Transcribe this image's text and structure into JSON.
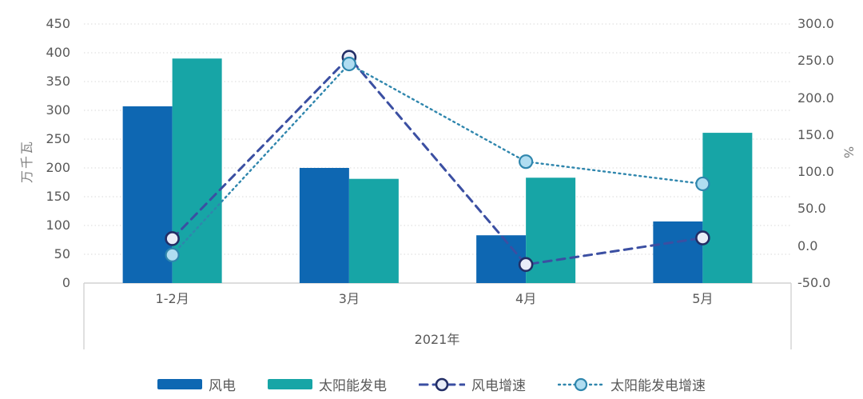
{
  "chart_data": {
    "type": "combo-bar-line",
    "categories": [
      "1-2月",
      "3月",
      "4月",
      "5月"
    ],
    "x_axis_group_label": "2021年",
    "left_axis": {
      "title": "万千瓦",
      "min": 0,
      "max": 450,
      "step": 50,
      "tick_labels": [
        "450",
        "400",
        "350",
        "300",
        "250",
        "200",
        "150",
        "100",
        "50",
        "0"
      ]
    },
    "right_axis": {
      "title": "%",
      "min": -50,
      "max": 300,
      "step": 50,
      "tick_labels": [
        "300.0",
        "250.0",
        "200.0",
        "150.0",
        "100.0",
        "50.0",
        "0.0",
        "-50.0"
      ]
    },
    "series": [
      {
        "name": "风电",
        "type": "bar",
        "axis": "left",
        "color": "#0e67b2",
        "values": [
          307,
          200,
          83,
          107
        ]
      },
      {
        "name": "太阳能发电",
        "type": "bar",
        "axis": "left",
        "color": "#17a5a6",
        "values": [
          390,
          181,
          183,
          261
        ]
      },
      {
        "name": "风电增速",
        "type": "line",
        "axis": "right",
        "line_style": "dashed",
        "color": "#3b4fa2",
        "marker_fill": "#e9edf8",
        "marker_stroke": "#232e66",
        "values": [
          10,
          255,
          -25,
          11
        ]
      },
      {
        "name": "太阳能发电增速",
        "type": "line",
        "axis": "right",
        "line_style": "dotted",
        "color": "#2f86ad",
        "marker_fill": "#b0ddf1",
        "marker_stroke": "#2f86ad",
        "values": [
          -12,
          246,
          114,
          84
        ]
      }
    ],
    "grid": {
      "show": true,
      "color": "#d9d9d9",
      "style": "dotted"
    },
    "frame_color": "#d2d2d2",
    "legend_position": "bottom"
  }
}
